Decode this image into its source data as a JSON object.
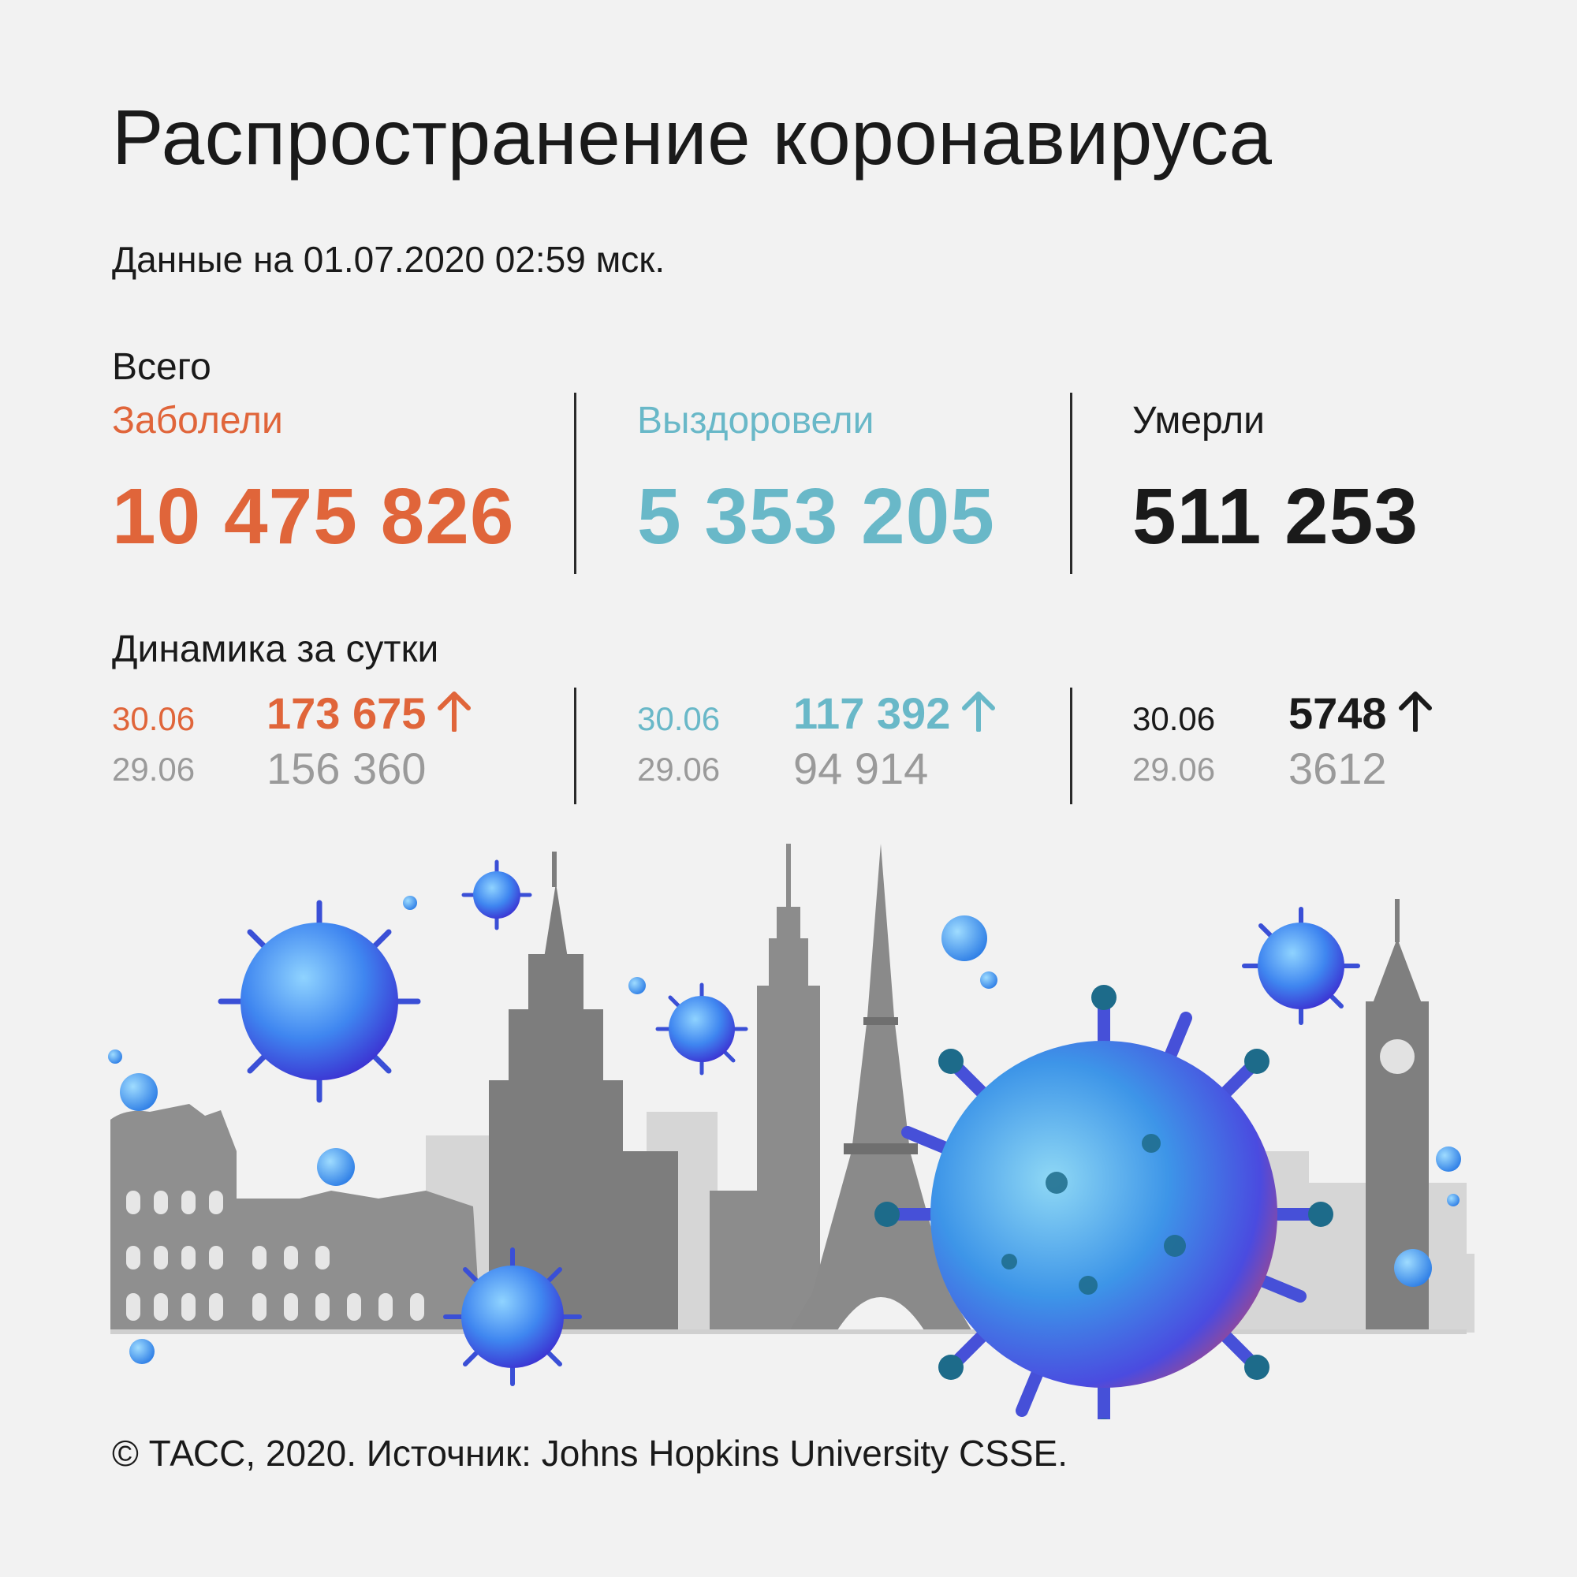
{
  "title": "Распространение коронавируса",
  "date_line": "Данные на 01.07.2020 02:59 мск.",
  "total_label": "Всего",
  "dynamics_label": "Динамика за сутки",
  "colors": {
    "infected": "#e0653a",
    "recovered": "#69b8c8",
    "deaths": "#1a1a1a",
    "previous": "#9a9a9a"
  },
  "columns": [
    {
      "category": "Заболели",
      "total": "10 475 826",
      "today_date": "30.06",
      "today_value": "173 675",
      "prev_date": "29.06",
      "prev_value": "156 360"
    },
    {
      "category": "Выздоровели",
      "total": "5 353 205",
      "today_date": "30.06",
      "today_value": "117 392",
      "prev_date": "29.06",
      "prev_value": "94 914"
    },
    {
      "category": "Умерли",
      "total": "511 253",
      "today_date": "30.06",
      "today_value": "5748",
      "prev_date": "29.06",
      "prev_value": "3612"
    }
  ],
  "icons": [
    "arrow-up-icon",
    "virus-icon"
  ],
  "footer": "© ТАСС, 2020. Источник: Johns Hopkins University CSSE."
}
